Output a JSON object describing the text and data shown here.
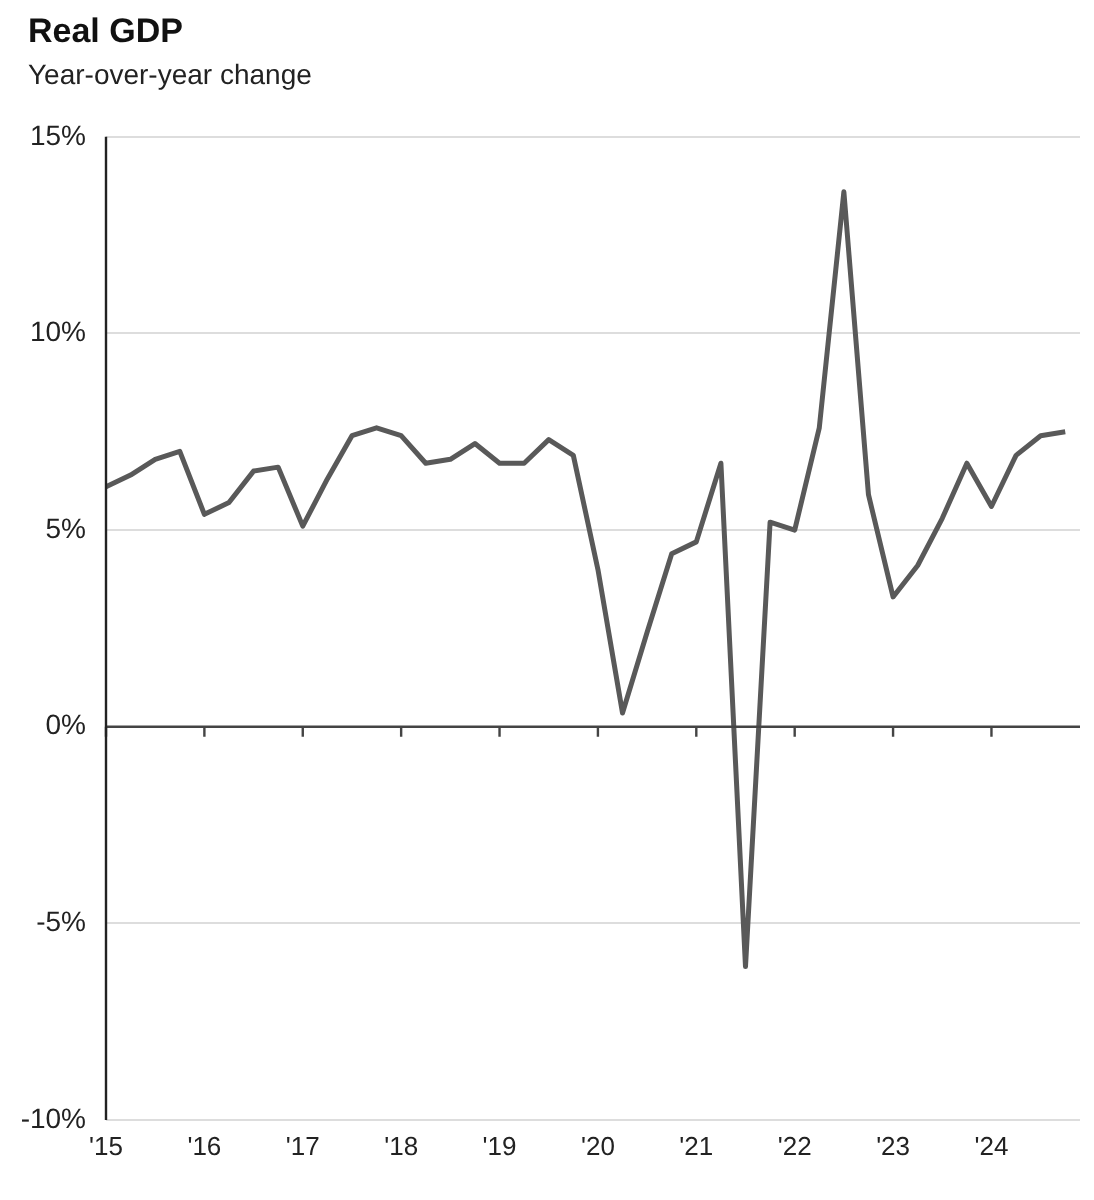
{
  "chart_data": {
    "type": "line",
    "title": "Real GDP",
    "subtitle": "Year-over-year change",
    "x": [
      2015,
      2015.25,
      2015.5,
      2015.75,
      2016,
      2016.25,
      2016.5,
      2016.75,
      2017,
      2017.25,
      2017.5,
      2017.75,
      2018,
      2018.25,
      2018.5,
      2018.75,
      2019,
      2019.25,
      2019.5,
      2019.75,
      2020,
      2020.25,
      2020.5,
      2020.75,
      2021,
      2021.25,
      2021.5,
      2021.75,
      2022,
      2022.25,
      2022.5,
      2022.75,
      2023,
      2023.25,
      2023.5,
      2023.75,
      2024,
      2024.25,
      2024.5,
      2024.75
    ],
    "series": [
      {
        "color": "#595959",
        "values": [
          6.1,
          6.4,
          6.8,
          7.0,
          5.4,
          5.7,
          6.5,
          6.6,
          5.1,
          6.3,
          7.4,
          7.6,
          7.4,
          6.7,
          6.8,
          7.2,
          6.7,
          6.7,
          7.3,
          6.9,
          4.0,
          0.35,
          2.4,
          4.4,
          4.7,
          6.7,
          -6.1,
          5.2,
          5.0,
          7.6,
          13.6,
          5.9,
          3.3,
          4.1,
          5.3,
          6.7,
          5.6,
          6.9,
          7.4,
          7.5
        ]
      }
    ],
    "xlim": [
      2015,
      2024.9
    ],
    "xticks": [
      {
        "value": 2015,
        "label": "'15"
      },
      {
        "value": 2016,
        "label": "'16"
      },
      {
        "value": 2017,
        "label": "'17"
      },
      {
        "value": 2018,
        "label": "'18"
      },
      {
        "value": 2019,
        "label": "'19"
      },
      {
        "value": 2020,
        "label": "'20"
      },
      {
        "value": 2021,
        "label": "'21"
      },
      {
        "value": 2022,
        "label": "'22"
      },
      {
        "value": 2023,
        "label": "'23"
      },
      {
        "value": 2024,
        "label": "'24"
      }
    ],
    "ylim": [
      -10,
      15
    ],
    "yticks": [
      {
        "value": -10,
        "label": "-10%"
      },
      {
        "value": -5,
        "label": "-5%"
      },
      {
        "value": 0,
        "label": "0%"
      },
      {
        "value": 5,
        "label": "5%"
      },
      {
        "value": 10,
        "label": "10%"
      },
      {
        "value": 15,
        "label": "15%"
      }
    ],
    "grid": "y",
    "legend": false,
    "marker": "none",
    "line_style": "solid"
  }
}
